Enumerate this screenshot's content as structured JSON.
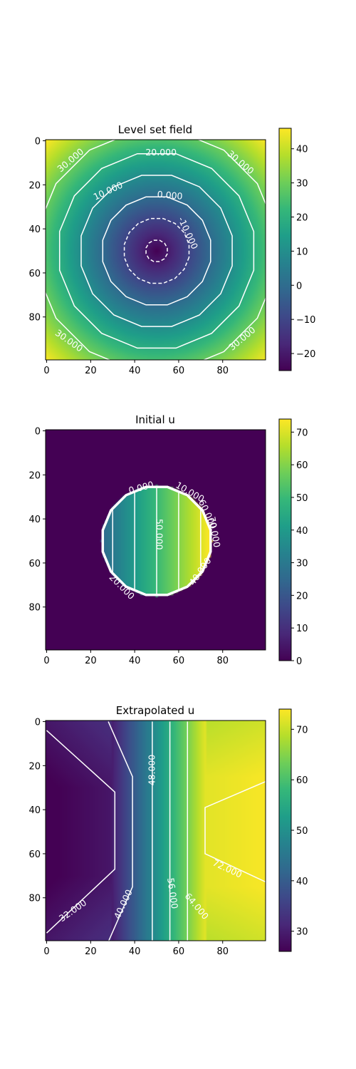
{
  "chart_data": [
    {
      "type": "heatmap",
      "title": "Level set field",
      "colormap": "viridis",
      "xticks": [
        "0",
        "20",
        "40",
        "60",
        "80"
      ],
      "yticks": [
        "0",
        "20",
        "40",
        "60",
        "80"
      ],
      "xlim": [
        0,
        100
      ],
      "ylim": [
        0,
        100
      ],
      "colorbar_range": [
        -25,
        46
      ],
      "colorbar_ticks": [
        "−20",
        "−10",
        "0",
        "10",
        "20",
        "30",
        "40"
      ],
      "contours": [
        {
          "level": -20,
          "style": "dashed",
          "center": [
            50,
            50
          ],
          "radius": 5
        },
        {
          "level": -10,
          "style": "dashed",
          "center": [
            50,
            50
          ],
          "radius": 15
        },
        {
          "level": 0,
          "style": "solid",
          "center": [
            50,
            50
          ],
          "radius": 25
        },
        {
          "level": 10,
          "style": "solid",
          "center": [
            50,
            50
          ],
          "radius": 35
        },
        {
          "level": 20,
          "style": "solid",
          "center": [
            50,
            50
          ],
          "radius": 45
        },
        {
          "level": 30,
          "style": "solid",
          "center": [
            50,
            50
          ],
          "radius": 55
        }
      ],
      "contour_labels": [
        {
          "text": "20.000",
          "x": 52,
          "y": 5.5,
          "angle": 0
        },
        {
          "text": "30.000",
          "x": 11,
          "y": 9,
          "angle": -40
        },
        {
          "text": "30.000",
          "x": 88,
          "y": 10,
          "angle": 40
        },
        {
          "text": "10.000",
          "x": 28,
          "y": 23,
          "angle": -25
        },
        {
          "text": "0.000",
          "x": 56,
          "y": 25,
          "angle": 5
        },
        {
          "text": "-10.000",
          "x": 64,
          "y": 42,
          "angle": 65
        },
        {
          "text": "30.000",
          "x": 10,
          "y": 91,
          "angle": 35
        },
        {
          "text": "30.000",
          "x": 89,
          "y": 90,
          "angle": -40
        }
      ]
    },
    {
      "type": "heatmap",
      "title": "Initial u",
      "colormap": "viridis",
      "xticks": [
        "0",
        "20",
        "40",
        "60",
        "80"
      ],
      "yticks": [
        "0",
        "20",
        "40",
        "60",
        "80"
      ],
      "xlim": [
        0,
        100
      ],
      "ylim": [
        0,
        100
      ],
      "colorbar_range": [
        0,
        74
      ],
      "colorbar_ticks": [
        "0",
        "10",
        "20",
        "30",
        "40",
        "50",
        "60",
        "70"
      ],
      "field": "u = x inside circle of radius 25 centered (50, 50), 0 outside",
      "circle": {
        "center": [
          50,
          50
        ],
        "radius": 25
      },
      "contour_lines_x": [
        30,
        40,
        50,
        60,
        70
      ],
      "contour_labels": [
        {
          "text": "0.000",
          "x": 43,
          "y": 26,
          "angle": -15
        },
        {
          "text": "50.000",
          "x": 51,
          "y": 47,
          "angle": 90
        },
        {
          "text": "20.000",
          "x": 34,
          "y": 71,
          "angle": 45
        },
        {
          "text": "10.000",
          "x": 65,
          "y": 28,
          "angle": 30
        },
        {
          "text": "60.000",
          "x": 73,
          "y": 38,
          "angle": 65
        },
        {
          "text": "70.000",
          "x": 76,
          "y": 46,
          "angle": 80
        },
        {
          "text": "40.000",
          "x": 70,
          "y": 64,
          "angle": -55
        }
      ]
    },
    {
      "type": "heatmap",
      "title": "Extrapolated u",
      "colormap": "viridis",
      "xticks": [
        "0",
        "20",
        "40",
        "60",
        "80"
      ],
      "yticks": [
        "0",
        "20",
        "40",
        "60",
        "80"
      ],
      "xlim": [
        0,
        100
      ],
      "ylim": [
        0,
        100
      ],
      "colorbar_range": [
        26,
        74
      ],
      "colorbar_ticks": [
        "30",
        "40",
        "50",
        "60",
        "70"
      ],
      "contour_polylines": [
        {
          "level": 32,
          "points": [
            [
              0,
              4
            ],
            [
              31,
              32
            ],
            [
              31,
              67
            ],
            [
              0,
              96
            ]
          ]
        },
        {
          "level": 40,
          "points": [
            [
              28,
              0
            ],
            [
              39,
              25
            ],
            [
              39,
              75
            ],
            [
              28,
              100
            ]
          ]
        },
        {
          "level": 48,
          "points": [
            [
              48,
              0
            ],
            [
              48,
              100
            ]
          ]
        },
        {
          "level": 56,
          "points": [
            [
              56,
              0
            ],
            [
              56,
              100
            ]
          ]
        },
        {
          "level": 64,
          "points": [
            [
              64,
              0
            ],
            [
              64,
              30
            ],
            [
              64,
              70
            ],
            [
              64,
              100
            ]
          ]
        },
        {
          "level": 72,
          "points": [
            [
              100,
              27
            ],
            [
              72,
              39
            ],
            [
              72,
              60
            ],
            [
              100,
              73
            ]
          ]
        }
      ],
      "contour_labels": [
        {
          "text": "48.000",
          "x": 48,
          "y": 22,
          "angle": -90
        },
        {
          "text": "32.000",
          "x": 12,
          "y": 86,
          "angle": -35
        },
        {
          "text": "40.000",
          "x": 35,
          "y": 83,
          "angle": -65
        },
        {
          "text": "56.000",
          "x": 57,
          "y": 78,
          "angle": 82
        },
        {
          "text": "64.000",
          "x": 68,
          "y": 84,
          "angle": 50
        },
        {
          "text": "72.000",
          "x": 82,
          "y": 67,
          "angle": 25
        }
      ]
    }
  ]
}
